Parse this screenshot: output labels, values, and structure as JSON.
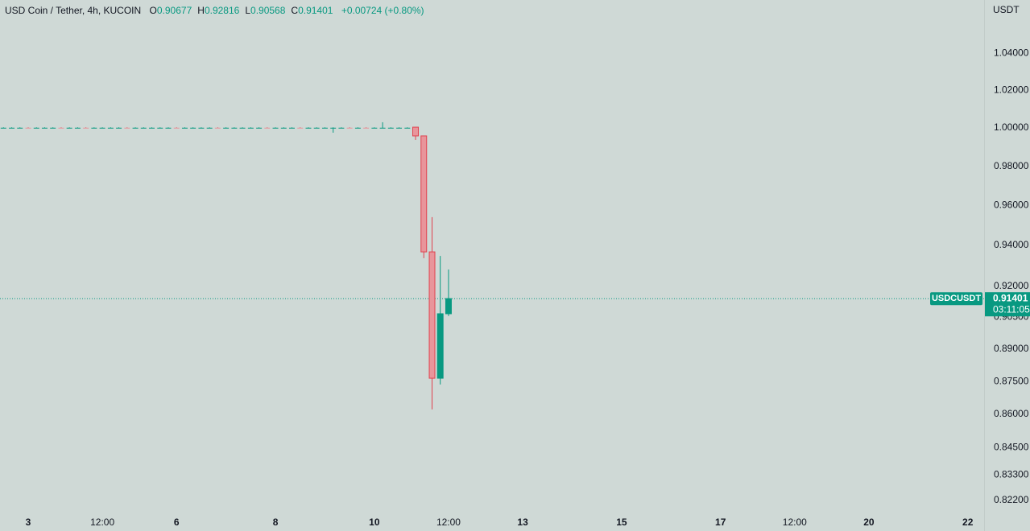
{
  "chart_data": {
    "type": "candlestick",
    "title": "USD Coin / Tether, 4h, KUCOIN",
    "ohlc_labels": [
      "O",
      "H",
      "L",
      "C"
    ],
    "change": "+0.00724 (+0.80%)",
    "symbol": "USDCUSDT",
    "countdown": "03:11:05",
    "currency": "USDT",
    "log_scale": true,
    "grid": false,
    "up_color": "#089981",
    "down_color": "#e0434f",
    "down_fill": "#e8959b",
    "candles": {
      "x": [
        2.5,
        2.667,
        2.833,
        3,
        3.167,
        3.333,
        3.5,
        3.667,
        3.833,
        4,
        4.167,
        4.333,
        4.5,
        4.667,
        4.833,
        5,
        5.167,
        5.333,
        5.5,
        5.667,
        5.833,
        6,
        6.167,
        6.333,
        6.5,
        6.667,
        6.833,
        7,
        7.167,
        7.333,
        7.5,
        7.667,
        7.833,
        8,
        8.167,
        8.333,
        8.5,
        8.667,
        8.833,
        9,
        9.167,
        9.333,
        9.5,
        9.667,
        9.833,
        10,
        10.167,
        10.333,
        10.5,
        10.667,
        10.833,
        11,
        11.167,
        11.333,
        11.5
      ],
      "open": [
        1,
        1,
        1,
        1.0001,
        1,
        1,
        1,
        1.0001,
        1,
        1,
        1.0001,
        1,
        1,
        1,
        1,
        1.0001,
        1,
        1,
        1,
        1,
        1,
        1.0001,
        1,
        1,
        1,
        1,
        1.0001,
        1,
        1,
        1,
        1,
        1,
        1.0001,
        1,
        1,
        1,
        1.0001,
        1,
        1,
        1,
        1,
        1,
        1.0001,
        1,
        1.0001,
        1,
        1,
        1,
        1,
        1,
        1.0004,
        0.9958,
        0.9368,
        0.8765,
        0.90677
      ],
      "high": [
        1.0003,
        1.0003,
        1.0003,
        1.0003,
        1.0003,
        1.0003,
        1.0003,
        1.0003,
        1.0003,
        1.0003,
        1.0003,
        1.0003,
        1.0003,
        1.0003,
        1.0003,
        1.0003,
        1.0003,
        1.0003,
        1.0003,
        1.0003,
        1.0003,
        1.0003,
        1.0003,
        1.0003,
        1.0003,
        1.0003,
        1.0003,
        1.0003,
        1.0003,
        1.0003,
        1.0003,
        1.0003,
        1.0003,
        1.0003,
        1.0003,
        1.0003,
        1.0003,
        1.0003,
        1.0003,
        1.0003,
        1.0003,
        1.0003,
        1.0003,
        1.0003,
        1.0003,
        1.0003,
        1.003,
        1.0003,
        1.0003,
        1.0003,
        1.0004,
        0.9958,
        0.9541,
        0.9348,
        0.92816
      ],
      "low": [
        0.9998,
        0.9998,
        0.9998,
        0.9998,
        0.9998,
        0.9998,
        0.9998,
        0.9998,
        0.9998,
        0.9998,
        0.9998,
        0.9998,
        0.9998,
        0.9998,
        0.9998,
        0.9998,
        0.9998,
        0.9998,
        0.9998,
        0.9998,
        0.9998,
        0.9998,
        0.9998,
        0.9998,
        0.9998,
        0.9998,
        0.9998,
        0.9998,
        0.9998,
        0.9998,
        0.9998,
        0.9998,
        0.9998,
        0.9998,
        0.9998,
        0.9998,
        0.9998,
        0.9998,
        0.9998,
        0.9998,
        0.9975,
        0.9998,
        0.9998,
        0.9998,
        0.9998,
        0.9998,
        0.9998,
        0.9998,
        0.9998,
        0.9998,
        0.9937,
        0.9337,
        0.8622,
        0.8736,
        0.90568
      ],
      "close": [
        1.0001,
        1.0001,
        1.0001,
        1,
        1.0001,
        1.0001,
        1.0001,
        1,
        1.0001,
        1.0001,
        1,
        1.0001,
        1.0001,
        1.0001,
        1.0001,
        1,
        1.0001,
        1.0001,
        1.0001,
        1.0001,
        1.0001,
        1,
        1.0001,
        1.0001,
        1.0001,
        1.0001,
        1,
        1.0001,
        1.0001,
        1.0001,
        1.0001,
        1.0001,
        1,
        1.0001,
        1.0001,
        1.0001,
        1,
        1.0001,
        1.0001,
        1.0001,
        1.0001,
        1.0001,
        1,
        1.0001,
        1,
        1.0001,
        1.0001,
        1.0001,
        1.0001,
        1.0001,
        0.9958,
        0.9368,
        0.8765,
        0.90677,
        0.91401
      ]
    },
    "ylim": [
      0.8163,
      1.0697
    ],
    "yticks": [
      {
        "value": 0.822,
        "label": "0.82200"
      },
      {
        "value": 0.833,
        "label": "0.83300"
      },
      {
        "value": 0.845,
        "label": "0.84500"
      },
      {
        "value": 0.86,
        "label": "0.86000"
      },
      {
        "value": 0.875,
        "label": "0.87500"
      },
      {
        "value": 0.89,
        "label": "0.89000"
      },
      {
        "value": 0.905,
        "label": "0.90500"
      },
      {
        "value": 0.92,
        "label": "0.92000"
      },
      {
        "value": 0.94,
        "label": "0.94000"
      },
      {
        "value": 0.96,
        "label": "0.96000"
      },
      {
        "value": 0.98,
        "label": "0.98000"
      },
      {
        "value": 1,
        "label": "1.00000"
      },
      {
        "value": 1.02,
        "label": "1.02000"
      },
      {
        "value": 1.04,
        "label": "1.04000"
      }
    ],
    "xlim": [
      2.43,
      22.33
    ],
    "xticks": [
      3,
      {
        "value": 4.5,
        "label": "12:00"
      },
      6,
      8,
      10,
      {
        "value": 11.5,
        "label": "12:00"
      },
      13,
      15,
      17,
      {
        "value": 18.5,
        "label": "12:00"
      },
      20,
      22
    ]
  }
}
